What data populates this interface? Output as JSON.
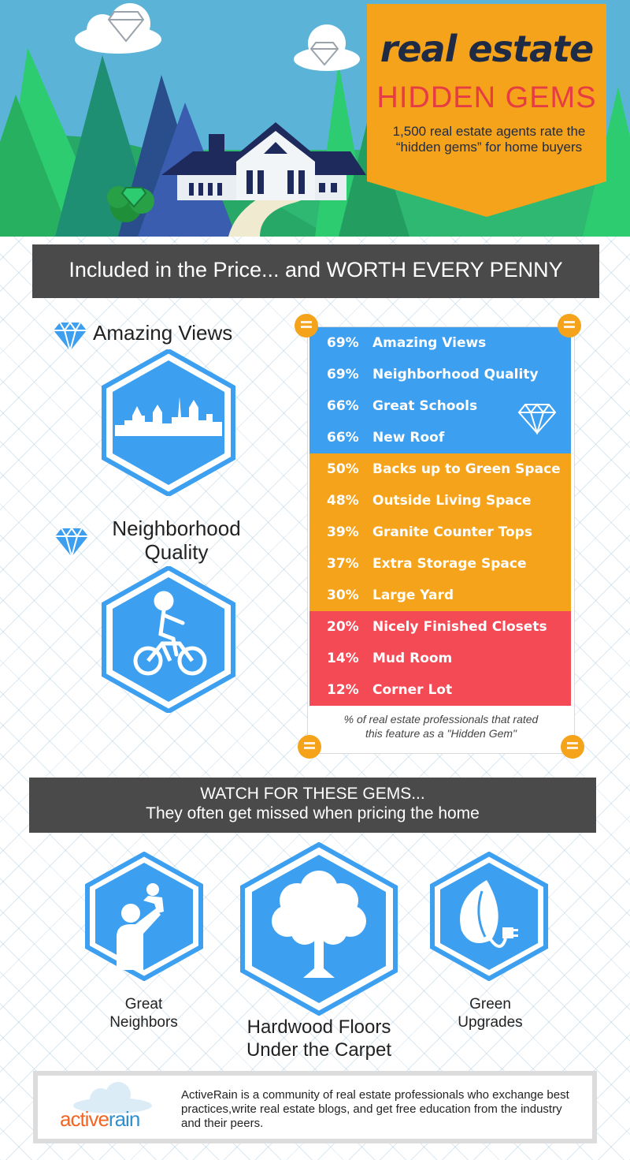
{
  "header": {
    "title": "real estate",
    "subtitle": "HIDDEN GEMS",
    "description": "1,500 real estate agents rate the “hidden gems” for home buyers"
  },
  "section1": {
    "heading": "Included in the Price... and WORTH EVERY PENNY"
  },
  "features": {
    "views_title": "Amazing Views",
    "neighborhood_title_line1": "Neighborhood",
    "neighborhood_title_line2": "Quality"
  },
  "ranked_list": {
    "items": [
      {
        "pct": "69%",
        "label": "Amazing Views",
        "tier": "blue"
      },
      {
        "pct": "69%",
        "label": "Neighborhood Quality",
        "tier": "blue"
      },
      {
        "pct": "66%",
        "label": "Great Schools",
        "tier": "blue"
      },
      {
        "pct": "66%",
        "label": "New Roof",
        "tier": "blue"
      },
      {
        "pct": "50%",
        "label": "Backs up to Green Space",
        "tier": "orange"
      },
      {
        "pct": "48%",
        "label": "Outside Living Space",
        "tier": "orange"
      },
      {
        "pct": "39%",
        "label": "Granite Counter Tops",
        "tier": "orange"
      },
      {
        "pct": "37%",
        "label": "Extra Storage Space",
        "tier": "orange"
      },
      {
        "pct": "30%",
        "label": "Large Yard",
        "tier": "orange"
      },
      {
        "pct": "20%",
        "label": "Nicely Finished Closets",
        "tier": "red"
      },
      {
        "pct": "14%",
        "label": "Mud Room",
        "tier": "red"
      },
      {
        "pct": "12%",
        "label": "Corner Lot",
        "tier": "red"
      }
    ],
    "note_line1": "% of real estate professionals that rated",
    "note_line2": "this feature as a \"Hidden Gem\""
  },
  "section2": {
    "heading_line1": "WATCH FOR THESE GEMS...",
    "heading_line2": "They often get missed when pricing the home"
  },
  "gems": {
    "neighbors_line1": "Great",
    "neighbors_line2": "Neighbors",
    "floors_line1": "Hardwood Floors",
    "floors_line2": "Under the Carpet",
    "green_line1": "Green",
    "green_line2": "Upgrades"
  },
  "footer": {
    "logo_part1": "active",
    "logo_part2": "rain",
    "text": "ActiveRain is a community of real estate professionals who exchange best practices,write real estate blogs, and get free education from the industry and their peers."
  },
  "colors": {
    "blue": "#3d9ff0",
    "orange": "#f5a31a",
    "red": "#f44a55",
    "dark_bar": "#4a4a4a",
    "navy": "#1f2a44",
    "brand_orange": "#f26522",
    "brand_blue": "#2f8fcf"
  },
  "icons": [
    "diamond-icon",
    "skyline-icon",
    "child-on-bike-icon",
    "parent-child-icon",
    "tree-icon",
    "leaf-plug-icon",
    "house-icon",
    "cloud-icon"
  ]
}
